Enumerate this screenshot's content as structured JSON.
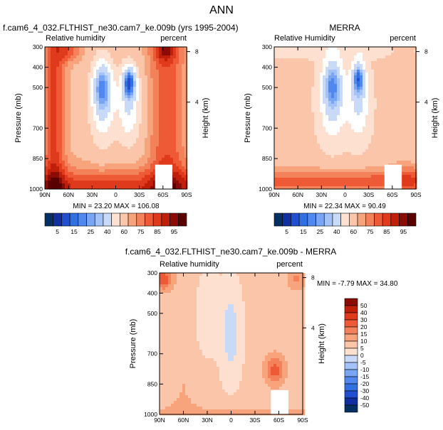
{
  "page_title": "ANN",
  "colors": {
    "scale": [
      "#053061",
      "#1030a0",
      "#2050d0",
      "#3070e0",
      "#5088f0",
      "#78a6f5",
      "#a2c2f8",
      "#c8daf8",
      "#ffffff",
      "#fde0d0",
      "#fac5a8",
      "#f7a47c",
      "#f3825a",
      "#ee5a35",
      "#e03a1c",
      "#c0200a",
      "#8a0c05",
      "#5a0000"
    ]
  },
  "chart_data": [
    {
      "type": "heatmap",
      "id": "cam",
      "title": "f.cam6_4_032.FLTHIST_ne30.cam7_ke.009b (yrs 1995-2004)",
      "left_label": "Relative humidity",
      "right_label": "percent",
      "ylabel": "Pressure (mb)",
      "y2label": "Height (km)",
      "x_ticks": [
        "90N",
        "60N",
        "30N",
        "0",
        "30S",
        "60S",
        "90S"
      ],
      "y_ticks": [
        300,
        400,
        500,
        700,
        850,
        1000
      ],
      "y2_ticks": [
        8,
        4
      ],
      "xlim": [
        90,
        -90
      ],
      "ylim": [
        1000,
        300
      ],
      "stats": "MIN =  23.20   MAX = 106.08",
      "field": "cam"
    },
    {
      "type": "heatmap",
      "id": "merra",
      "title": "MERRA",
      "left_label": "Relative Humidity",
      "right_label": "percent",
      "ylabel": "Pressure (mb)",
      "y2label": "Height (km)",
      "x_ticks": [
        "90N",
        "60N",
        "30N",
        "0",
        "30S",
        "60S",
        "90S"
      ],
      "y_ticks": [
        300,
        400,
        500,
        700,
        850,
        1000
      ],
      "y2_ticks": [
        8,
        4
      ],
      "xlim": [
        90,
        -90
      ],
      "ylim": [
        1000,
        300
      ],
      "stats": "MIN =  22.34   MAX =  90.49",
      "field": "merra"
    },
    {
      "type": "heatmap",
      "id": "diff",
      "title": "f.cam6_4_032.FLTHIST_ne30.cam7_ke.009b - MERRA",
      "left_label": "Relative humidity",
      "right_label": "percent",
      "ylabel": "Pressure (mb)",
      "y2label": "Height (km)",
      "x_ticks": [
        "90N",
        "60N",
        "30N",
        "0",
        "30S",
        "60S",
        "90S"
      ],
      "y_ticks": [
        300,
        400,
        500,
        700,
        850,
        1000
      ],
      "y2_ticks": [
        8,
        4
      ],
      "xlim": [
        90,
        -90
      ],
      "ylim": [
        1000,
        300
      ],
      "stats": "MIN = -7.79   MAX = 34.80",
      "field": "diff"
    }
  ],
  "colorbar_top": {
    "labels": [
      "5",
      "15",
      "25",
      "40",
      "60",
      "75",
      "85",
      "95"
    ],
    "levels": [
      0,
      5,
      10,
      15,
      20,
      25,
      30,
      40,
      50,
      60,
      70,
      75,
      80,
      85,
      90,
      95,
      100
    ]
  },
  "colorbar_diff": {
    "labels": [
      "50",
      "40",
      "30",
      "20",
      "15",
      "10",
      "5",
      "0",
      "-5",
      "-10",
      "-15",
      "-20",
      "-30",
      "-40",
      "-50"
    ],
    "levels": [
      -50,
      -40,
      -30,
      -20,
      -15,
      -10,
      -5,
      0,
      5,
      10,
      15,
      20,
      30,
      40,
      50
    ]
  }
}
